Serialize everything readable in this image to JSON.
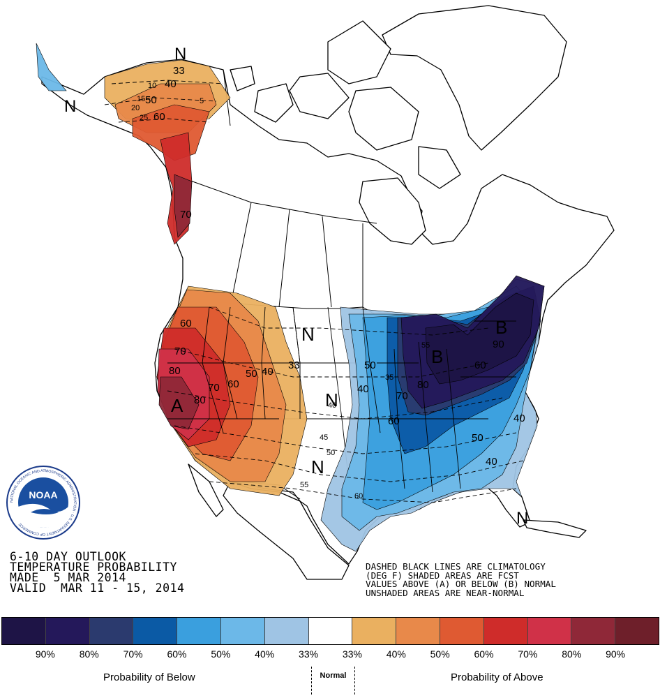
{
  "product": {
    "line1": "6-10 DAY OUTLOOK",
    "line2": "TEMPERATURE PROBABILITY",
    "line3": "MADE  5 MAR 2014",
    "line4": "VALID  MAR 11 - 15, 2014"
  },
  "notes": {
    "line1": "DASHED BLACK LINES ARE CLIMATOLOGY",
    "line2": "(DEG F) SHADED AREAS ARE FCST",
    "line3": "VALUES ABOVE (A) OR BELOW (B) NORMAL",
    "line4": "UNSHADED AREAS ARE NEAR-NORMAL"
  },
  "logo": {
    "text": "NOAA",
    "ring_text": "NATIONAL OCEANIC AND ATMOSPHERIC ADMINISTRATION · U.S. DEPARTMENT OF COMMERCE"
  },
  "legend": {
    "swatches": [
      "#1e1446",
      "#24185a",
      "#2b3a6e",
      "#0b5aa5",
      "#3a9fde",
      "#6cb8e8",
      "#9fc4e4",
      "#ffffff",
      "#eab060",
      "#e8894a",
      "#df5a32",
      "#cf2c2a",
      "#d03148",
      "#8f2838",
      "#6e1f2a"
    ],
    "labels": [
      "90%",
      "80%",
      "70%",
      "60%",
      "50%",
      "40%",
      "33%",
      "33%",
      "40%",
      "50%",
      "60%",
      "70%",
      "80%",
      "90%"
    ],
    "below_caption": "Probability of Below",
    "normal_caption": "Normal",
    "above_caption": "Probability of Above"
  },
  "map": {
    "category_labels": {
      "above": "A",
      "below": "B",
      "normal": "N"
    },
    "probability_labels": [
      "60",
      "70",
      "80",
      "80",
      "70",
      "60",
      "50",
      "40",
      "33",
      "50",
      "40",
      "60",
      "70",
      "80",
      "90",
      "60",
      "50",
      "40",
      "40",
      "50",
      "60",
      "70",
      "40",
      "33"
    ],
    "climatology_labels": [
      "10",
      "15",
      "20",
      "25",
      "5",
      "40",
      "45",
      "50",
      "55",
      "60",
      "55",
      "35"
    ]
  }
}
